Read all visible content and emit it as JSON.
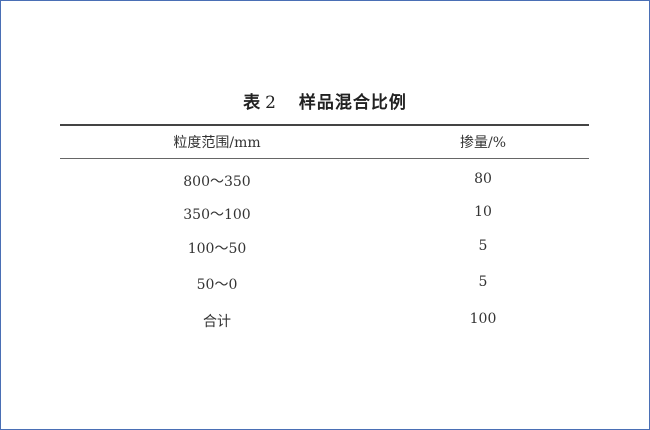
{
  "table": {
    "label": "表 2",
    "title": "样品混合比例",
    "headers": [
      "粒度范围/mm",
      "掺量/%"
    ],
    "rows": [
      [
        "800～350",
        "80"
      ],
      [
        "350～100",
        "10"
      ],
      [
        "100～50",
        "5"
      ],
      [
        "50～0",
        "5"
      ],
      [
        "合计",
        "100"
      ]
    ]
  },
  "colors": {
    "frame": "#4a6fb5"
  }
}
